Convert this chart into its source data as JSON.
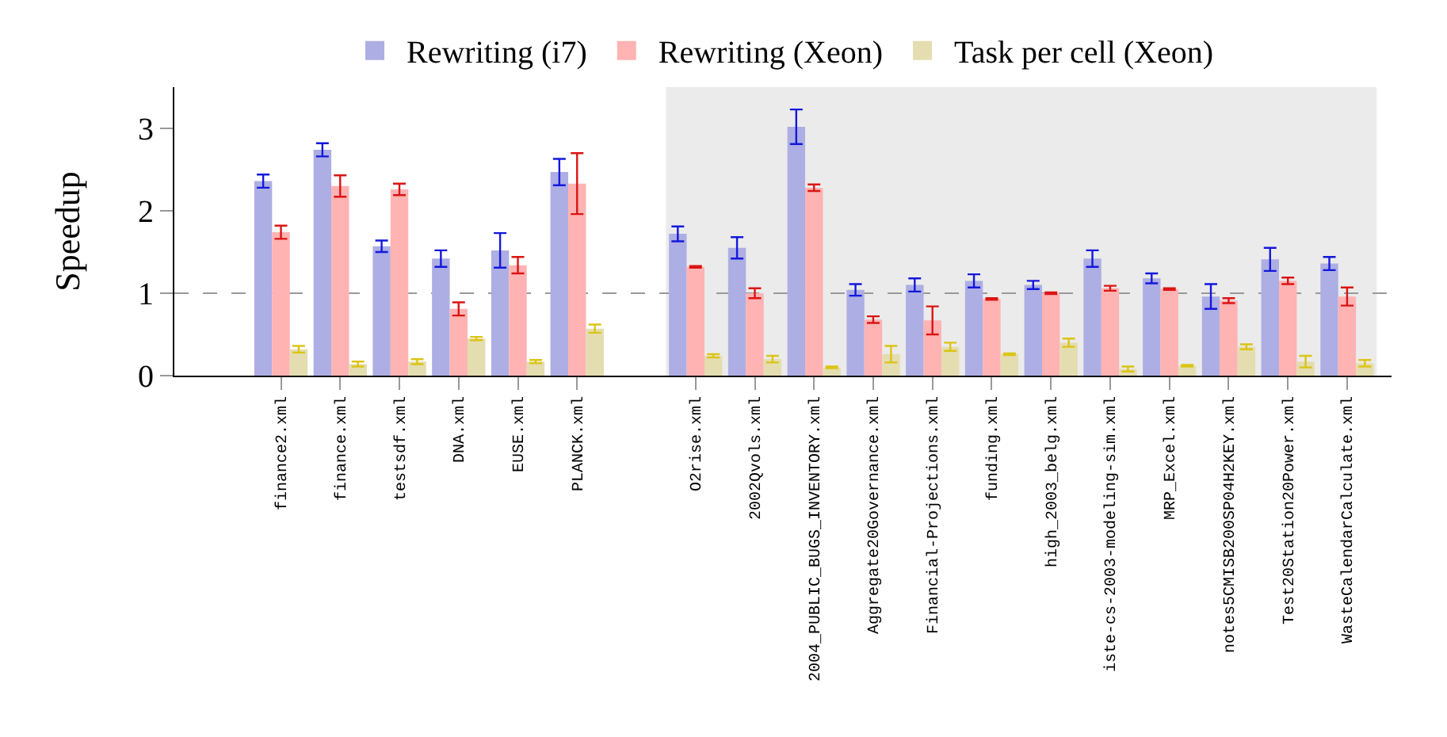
{
  "chart_data": {
    "type": "bar",
    "ylabel": "Speedup",
    "categories": [
      "finance2.xml",
      "finance.xml",
      "testsdf.xml",
      "DNA.xml",
      "EUSE.xml",
      "PLANCK.xml",
      null,
      "O2rise.xml",
      "2002Qvols.xml",
      "2004_PUBLIC_BUGS_INVENTORY.xml",
      "Aggregate20Governance.xml",
      "Financial-Projections.xml",
      "funding.xml",
      "high_2003_belg.xml",
      "iste-cs-2003-modeling-sim.xml",
      "MRP_Excel.xml",
      "notes5CMISB200SP04H2KEY.xml",
      "Test20Station20Power.xml",
      "WasteCalendarCalculate.xml"
    ],
    "series": [
      {
        "name": "Rewriting (i7)",
        "color": "#adaee3",
        "values": [
          2.36,
          2.74,
          1.57,
          1.42,
          1.52,
          2.47,
          null,
          1.72,
          1.55,
          3.02,
          1.04,
          1.1,
          1.15,
          1.1,
          1.42,
          1.18,
          0.96,
          1.41,
          1.36
        ],
        "errors": [
          0.08,
          0.08,
          0.07,
          0.1,
          0.21,
          0.16,
          null,
          0.09,
          0.13,
          0.21,
          0.07,
          0.08,
          0.08,
          0.05,
          0.1,
          0.06,
          0.15,
          0.14,
          0.08
        ]
      },
      {
        "name": "Rewriting (Xeon)",
        "color": "#ffb3b3",
        "values": [
          1.74,
          2.3,
          2.26,
          0.81,
          1.34,
          2.33,
          null,
          1.32,
          1.0,
          2.28,
          0.68,
          0.67,
          0.93,
          1.0,
          1.06,
          1.05,
          0.91,
          1.15,
          0.96
        ],
        "errors": [
          0.08,
          0.13,
          0.07,
          0.08,
          0.1,
          0.37,
          null,
          0.01,
          0.06,
          0.04,
          0.04,
          0.17,
          0.01,
          0.01,
          0.03,
          0.01,
          0.03,
          0.04,
          0.11
        ]
      },
      {
        "name": "Task per cell (Xeon)",
        "color": "#e3ddb0",
        "values": [
          0.32,
          0.14,
          0.17,
          0.45,
          0.17,
          0.57,
          null,
          0.24,
          0.2,
          0.1,
          0.26,
          0.35,
          0.26,
          0.4,
          0.08,
          0.12,
          0.35,
          0.17,
          0.15
        ],
        "errors": [
          0.04,
          0.03,
          0.03,
          0.02,
          0.02,
          0.05,
          null,
          0.02,
          0.04,
          0.01,
          0.1,
          0.05,
          0.01,
          0.05,
          0.03,
          0.01,
          0.03,
          0.07,
          0.04
        ]
      }
    ],
    "ylim": [
      0,
      3.5
    ],
    "yticks": [
      0,
      1,
      2,
      3
    ],
    "grid": false,
    "legend": "top",
    "ref_lines": [
      {
        "axis": "y",
        "value": 1,
        "color": "#999999",
        "line_style": "dashed"
      }
    ],
    "bands": [
      {
        "axis": "x",
        "from": "O2rise.xml",
        "to": "WasteCalendarCalculate.xml",
        "color": "#ebebeb"
      }
    ]
  }
}
